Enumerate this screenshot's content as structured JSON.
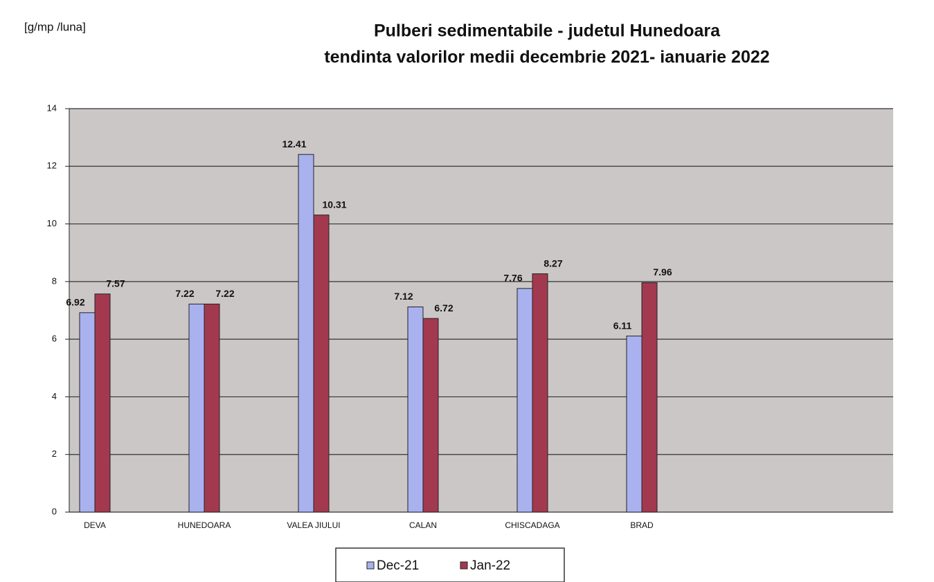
{
  "chart_data": {
    "type": "bar",
    "title": "Pulberi sedimentabile - judetul Hunedoara",
    "subtitle": "tendinta valorilor medii decembrie  2021- ianuarie 2022",
    "y_label": "[g/mp /luna]",
    "categories": [
      "DEVA",
      "HUNEDOARA",
      "VALEA JIULUI",
      "CALAN",
      "CHISCADAGA",
      "BRAD"
    ],
    "series": [
      {
        "name": "Dec-21",
        "color": "#a9b2ef",
        "values": [
          6.92,
          7.22,
          12.41,
          7.12,
          7.76,
          6.11
        ]
      },
      {
        "name": "Jan-22",
        "color": "#a3394f",
        "values": [
          7.57,
          7.22,
          10.31,
          6.72,
          8.27,
          7.96
        ]
      }
    ],
    "ylim": [
      0,
      14
    ],
    "yticks": [
      0,
      2,
      4,
      6,
      8,
      10,
      12,
      14
    ],
    "grid": true,
    "legend": "bottom"
  }
}
